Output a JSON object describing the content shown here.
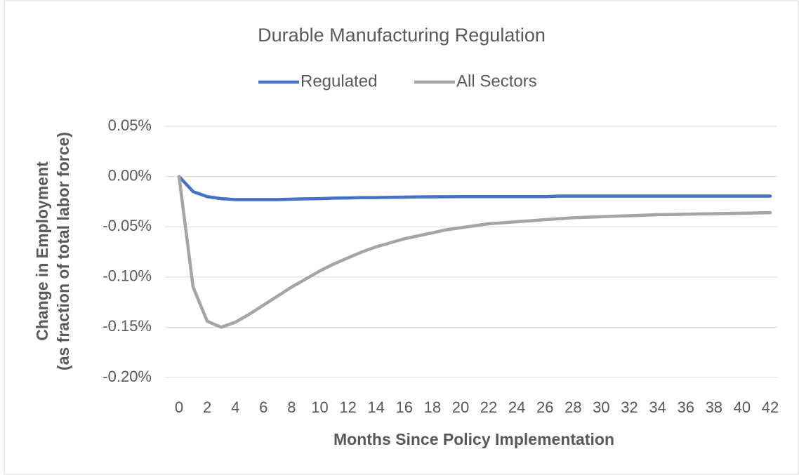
{
  "chart_data": {
    "type": "line",
    "title": "Durable Manufacturing Regulation",
    "x_label": "Months Since Policy Implementation",
    "y_label": [
      "Change in Employment",
      "(as fraction of total labor force)"
    ],
    "x": [
      0,
      1,
      2,
      3,
      4,
      5,
      6,
      7,
      8,
      9,
      10,
      11,
      12,
      13,
      14,
      15,
      16,
      17,
      18,
      19,
      20,
      21,
      22,
      23,
      24,
      25,
      26,
      27,
      28,
      29,
      30,
      31,
      32,
      33,
      34,
      35,
      36,
      37,
      38,
      39,
      40,
      41,
      42
    ],
    "series": [
      {
        "name": "Regulated",
        "color": "#4472c4",
        "values": [
          0,
          -0.015,
          -0.02,
          -0.022,
          -0.023,
          -0.023,
          -0.023,
          -0.023,
          -0.0225,
          -0.0222,
          -0.022,
          -0.0215,
          -0.0213,
          -0.021,
          -0.021,
          -0.0207,
          -0.0205,
          -0.0203,
          -0.0202,
          -0.0201,
          -0.02,
          -0.02,
          -0.02,
          -0.02,
          -0.02,
          -0.02,
          -0.02,
          -0.0195,
          -0.0195,
          -0.0195,
          -0.0195,
          -0.0195,
          -0.0195,
          -0.0195,
          -0.0195,
          -0.0195,
          -0.0195,
          -0.0195,
          -0.0195,
          -0.0195,
          -0.0195,
          -0.0195,
          -0.0195
        ]
      },
      {
        "name": "All Sectors",
        "color": "#a5a5a5",
        "values": [
          0,
          -0.11,
          -0.144,
          -0.15,
          -0.145,
          -0.137,
          -0.128,
          -0.119,
          -0.11,
          -0.102,
          -0.094,
          -0.087,
          -0.081,
          -0.075,
          -0.07,
          -0.066,
          -0.062,
          -0.059,
          -0.056,
          -0.053,
          -0.051,
          -0.049,
          -0.047,
          -0.046,
          -0.045,
          -0.044,
          -0.043,
          -0.042,
          -0.041,
          -0.0405,
          -0.04,
          -0.0395,
          -0.039,
          -0.0385,
          -0.038,
          -0.0378,
          -0.0375,
          -0.0372,
          -0.037,
          -0.0368,
          -0.0365,
          -0.0362,
          -0.036
        ]
      }
    ],
    "xlim": [
      0,
      42
    ],
    "xticks": [
      0,
      2,
      4,
      6,
      8,
      10,
      12,
      14,
      16,
      18,
      20,
      22,
      24,
      26,
      28,
      30,
      32,
      34,
      36,
      38,
      40,
      42
    ],
    "ylim": [
      -0.2,
      0.05
    ],
    "yticks": [
      {
        "value": -0.2,
        "label": "-0.20%"
      },
      {
        "value": -0.15,
        "label": "-0.15%"
      },
      {
        "value": -0.1,
        "label": "-0.10%"
      },
      {
        "value": -0.05,
        "label": "-0.05%"
      },
      {
        "value": 0,
        "label": "0.00%"
      },
      {
        "value": 0.05,
        "label": "0.05%"
      }
    ],
    "grid": true,
    "legend": "top"
  }
}
